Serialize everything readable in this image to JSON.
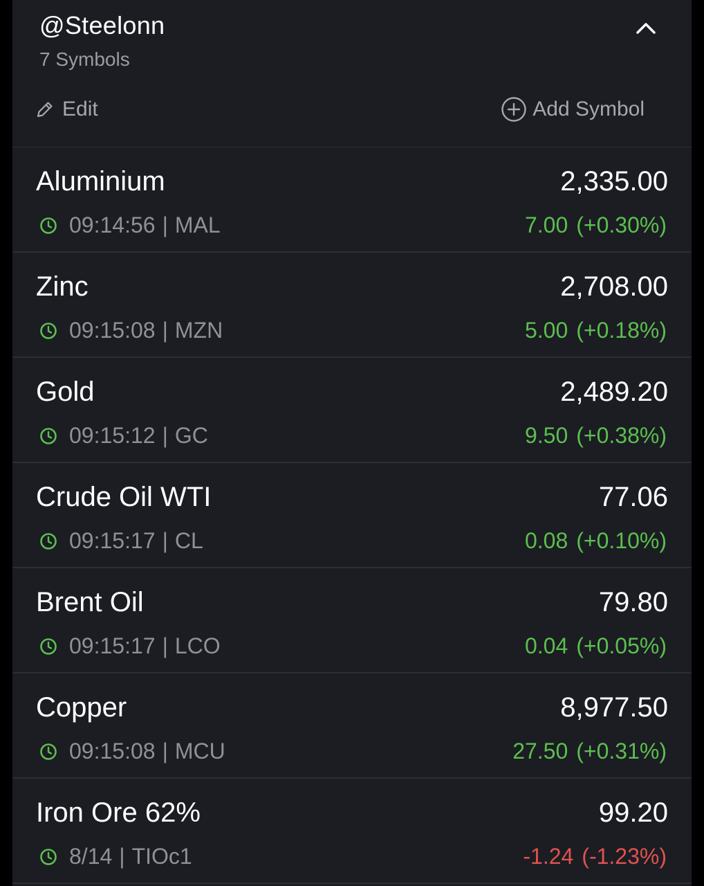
{
  "watchlist": {
    "title": "@Steelonn",
    "count_label": "7 Symbols",
    "edit_label": "Edit",
    "add_label": "Add Symbol"
  },
  "colors": {
    "background": "#1b1d23",
    "positive": "#5cbf4e",
    "negative": "#e0524f",
    "muted": "#8f9197"
  },
  "icons": {
    "collapse": "chevron-up-icon",
    "edit": "pencil-icon",
    "add": "plus-circle-icon",
    "time": "clock-icon"
  },
  "symbols": [
    {
      "name": "Aluminium",
      "price": "2,335.00",
      "time": "09:14:56",
      "ticker": "MAL",
      "change": "7.00",
      "percent": "(+0.30%)",
      "direction": "up"
    },
    {
      "name": "Zinc",
      "price": "2,708.00",
      "time": "09:15:08",
      "ticker": "MZN",
      "change": "5.00",
      "percent": "(+0.18%)",
      "direction": "up"
    },
    {
      "name": "Gold",
      "price": "2,489.20",
      "time": "09:15:12",
      "ticker": "GC",
      "change": "9.50",
      "percent": "(+0.38%)",
      "direction": "up"
    },
    {
      "name": "Crude Oil WTI",
      "price": "77.06",
      "time": "09:15:17",
      "ticker": "CL",
      "change": "0.08",
      "percent": "(+0.10%)",
      "direction": "up"
    },
    {
      "name": "Brent Oil",
      "price": "79.80",
      "time": "09:15:17",
      "ticker": "LCO",
      "change": "0.04",
      "percent": "(+0.05%)",
      "direction": "up"
    },
    {
      "name": "Copper",
      "price": "8,977.50",
      "time": "09:15:08",
      "ticker": "MCU",
      "change": "27.50",
      "percent": "(+0.31%)",
      "direction": "up"
    },
    {
      "name": "Iron Ore 62%",
      "price": "99.20",
      "time": "8/14",
      "ticker": "TIOc1",
      "change": "-1.24",
      "percent": "(-1.23%)",
      "direction": "down"
    }
  ]
}
